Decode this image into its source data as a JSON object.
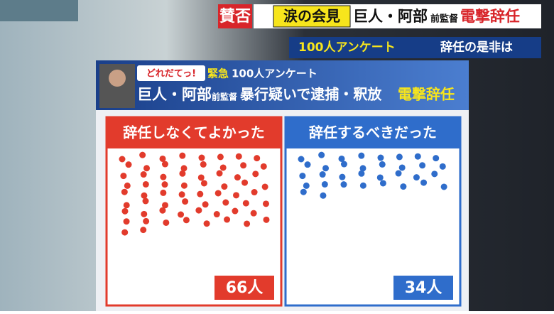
{
  "banner": {
    "tag1": "賛否",
    "tag2": "涙の会見",
    "headline1": "巨人・阿部",
    "headline_small": "前監督",
    "headline2": "電撃辞任",
    "sub1": "100人アンケート",
    "sub2": "辞任の是非は"
  },
  "board": {
    "logo": "どれだてっ!",
    "kicker": "緊急",
    "kicker_rest": "100人アンケート",
    "line1": "巨人・阿部",
    "line1_small": "前監督",
    "line1_rest": "暴行疑いで逮捕・釈放",
    "line1_emph": "電撃辞任"
  },
  "chart_data": {
    "type": "dot",
    "categories": [
      "辞任しなくてよかった",
      "辞任するべきだった"
    ],
    "values": [
      66,
      34
    ],
    "value_labels": [
      "66人",
      "34人"
    ],
    "colors": [
      "#e23b2c",
      "#2f6dcb"
    ]
  }
}
